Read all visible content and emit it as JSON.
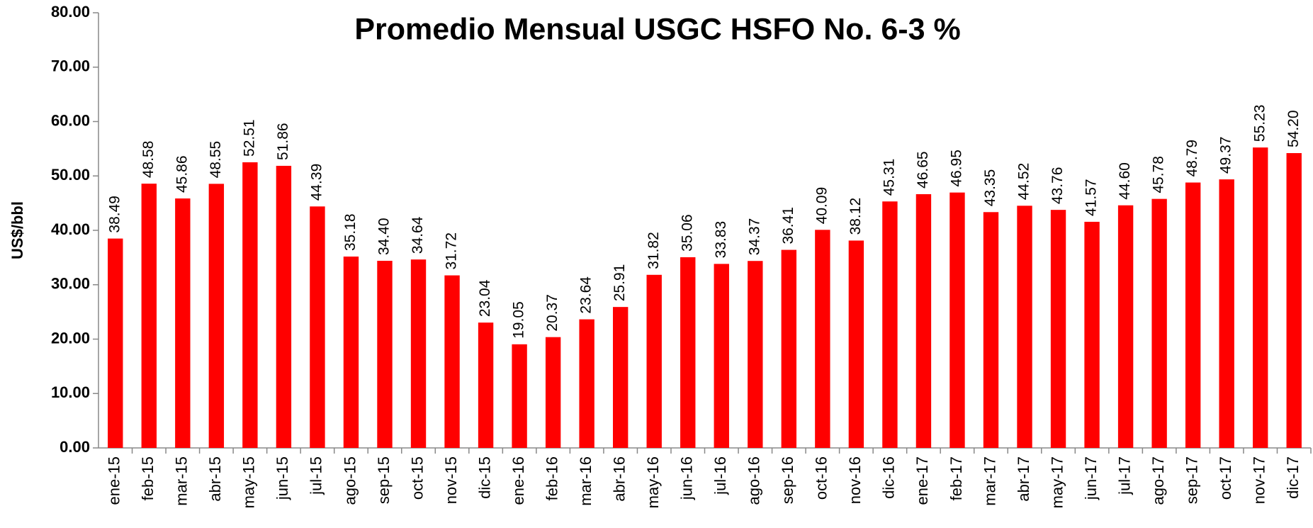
{
  "chart_data": {
    "type": "bar",
    "title": "Promedio Mensual USGC HSFO No. 6-3 %",
    "y_label": "US$/bbl",
    "categories": [
      "ene-15",
      "feb-15",
      "mar-15",
      "abr-15",
      "may-15",
      "jun-15",
      "jul-15",
      "ago-15",
      "sep-15",
      "oct-15",
      "nov-15",
      "dic-15",
      "ene-16",
      "feb-16",
      "mar-16",
      "abr-16",
      "may-16",
      "jun-16",
      "jul-16",
      "ago-16",
      "sep-16",
      "oct-16",
      "nov-16",
      "dic-16",
      "ene-17",
      "feb-17",
      "mar-17",
      "abr-17",
      "may-17",
      "jun-17",
      "jul-17",
      "ago-17",
      "sep-17",
      "oct-17",
      "nov-17",
      "dic-17"
    ],
    "values": [
      38.49,
      48.58,
      45.86,
      48.55,
      52.51,
      51.86,
      44.39,
      35.18,
      34.4,
      34.64,
      31.72,
      23.04,
      19.05,
      20.37,
      23.64,
      25.91,
      31.82,
      35.06,
      33.83,
      34.37,
      36.41,
      40.09,
      38.12,
      45.31,
      46.65,
      46.95,
      43.35,
      44.52,
      43.76,
      41.57,
      44.6,
      45.78,
      48.79,
      49.37,
      55.23,
      54.2
    ],
    "value_labels": [
      "38.49",
      "48.58",
      "45.86",
      "48.55",
      "52.51",
      "51.86",
      "44.39",
      "35.18",
      "34.40",
      "34.64",
      "31.72",
      "23.04",
      "19.05",
      "20.37",
      "23.64",
      "25.91",
      "31.82",
      "35.06",
      "33.83",
      "34.37",
      "36.41",
      "40.09",
      "38.12",
      "45.31",
      "46.65",
      "46.95",
      "43.35",
      "44.52",
      "43.76",
      "41.57",
      "44.60",
      "45.78",
      "48.79",
      "49.37",
      "55.23",
      "54.20"
    ],
    "color": "#ff0000",
    "ylim": [
      0,
      80
    ],
    "yticks": [
      {
        "value": 0,
        "label": "0.00"
      },
      {
        "value": 10,
        "label": "10.00"
      },
      {
        "value": 20,
        "label": "20.00"
      },
      {
        "value": 30,
        "label": "30.00"
      },
      {
        "value": 40,
        "label": "40.00"
      },
      {
        "value": 50,
        "label": "50.00"
      },
      {
        "value": 60,
        "label": "60.00"
      },
      {
        "value": 70,
        "label": "70.00"
      },
      {
        "value": 80,
        "label": "80.00"
      }
    ],
    "grid": false
  }
}
